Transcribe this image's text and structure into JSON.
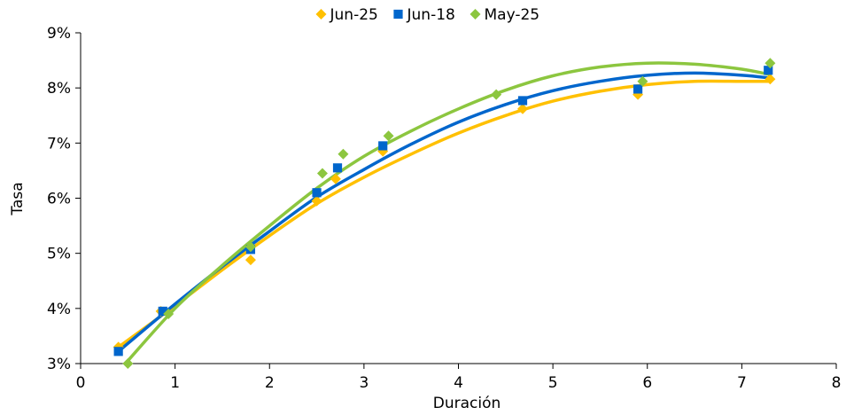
{
  "chart_data": {
    "type": "scatter",
    "xlabel": "Duración",
    "ylabel": "Tasa",
    "xlim": [
      0,
      8
    ],
    "ylim": [
      3,
      9
    ],
    "xticks": [
      0,
      1,
      2,
      3,
      4,
      5,
      6,
      7,
      8
    ],
    "yticks": [
      3,
      4,
      5,
      6,
      7,
      8,
      9
    ],
    "ytick_suffix": "%",
    "grid": false,
    "legend_position": "top-center",
    "series": [
      {
        "name": "Jun-25",
        "color": "#ffc000",
        "marker": "diamond",
        "points": [
          {
            "x": 0.4,
            "y": 3.3
          },
          {
            "x": 0.85,
            "y": 3.95
          },
          {
            "x": 1.8,
            "y": 4.88
          },
          {
            "x": 2.5,
            "y": 5.95
          },
          {
            "x": 2.7,
            "y": 6.35
          },
          {
            "x": 3.2,
            "y": 6.85
          },
          {
            "x": 4.68,
            "y": 7.62
          },
          {
            "x": 5.9,
            "y": 7.88
          },
          {
            "x": 7.3,
            "y": 8.16
          }
        ],
        "curve": [
          {
            "x": 0.4,
            "y": 3.3
          },
          {
            "x": 1.0,
            "y": 4.05
          },
          {
            "x": 1.5,
            "y": 4.7
          },
          {
            "x": 2.0,
            "y": 5.32
          },
          {
            "x": 2.5,
            "y": 5.9
          },
          {
            "x": 3.0,
            "y": 6.38
          },
          {
            "x": 3.5,
            "y": 6.8
          },
          {
            "x": 4.0,
            "y": 7.18
          },
          {
            "x": 4.5,
            "y": 7.5
          },
          {
            "x": 5.0,
            "y": 7.76
          },
          {
            "x": 5.5,
            "y": 7.94
          },
          {
            "x": 6.0,
            "y": 8.06
          },
          {
            "x": 6.5,
            "y": 8.12
          },
          {
            "x": 7.0,
            "y": 8.12
          },
          {
            "x": 7.3,
            "y": 8.12
          }
        ]
      },
      {
        "name": "Jun-18",
        "color": "#0066cc",
        "marker": "square",
        "points": [
          {
            "x": 0.4,
            "y": 3.22
          },
          {
            "x": 0.87,
            "y": 3.95
          },
          {
            "x": 1.8,
            "y": 5.07
          },
          {
            "x": 2.5,
            "y": 6.1
          },
          {
            "x": 2.72,
            "y": 6.55
          },
          {
            "x": 3.2,
            "y": 6.95
          },
          {
            "x": 4.68,
            "y": 7.77
          },
          {
            "x": 5.9,
            "y": 7.98
          },
          {
            "x": 7.28,
            "y": 8.32
          }
        ],
        "curve": [
          {
            "x": 0.4,
            "y": 3.22
          },
          {
            "x": 1.0,
            "y": 4.08
          },
          {
            "x": 1.5,
            "y": 4.76
          },
          {
            "x": 2.0,
            "y": 5.4
          },
          {
            "x": 2.5,
            "y": 6.02
          },
          {
            "x": 3.0,
            "y": 6.52
          },
          {
            "x": 3.5,
            "y": 6.98
          },
          {
            "x": 4.0,
            "y": 7.38
          },
          {
            "x": 4.5,
            "y": 7.7
          },
          {
            "x": 5.0,
            "y": 7.95
          },
          {
            "x": 5.5,
            "y": 8.12
          },
          {
            "x": 6.0,
            "y": 8.23
          },
          {
            "x": 6.5,
            "y": 8.27
          },
          {
            "x": 7.0,
            "y": 8.23
          },
          {
            "x": 7.3,
            "y": 8.18
          }
        ]
      },
      {
        "name": "May-25",
        "color": "#8cc63f",
        "marker": "diamond",
        "points": [
          {
            "x": 0.5,
            "y": 3.0
          },
          {
            "x": 0.93,
            "y": 3.9
          },
          {
            "x": 1.8,
            "y": 5.12
          },
          {
            "x": 2.56,
            "y": 6.45
          },
          {
            "x": 2.78,
            "y": 6.8
          },
          {
            "x": 3.26,
            "y": 7.13
          },
          {
            "x": 4.4,
            "y": 7.88
          },
          {
            "x": 5.95,
            "y": 8.12
          },
          {
            "x": 7.3,
            "y": 8.45
          }
        ],
        "curve": [
          {
            "x": 0.5,
            "y": 3.05
          },
          {
            "x": 1.0,
            "y": 4.0
          },
          {
            "x": 1.5,
            "y": 4.78
          },
          {
            "x": 2.0,
            "y": 5.5
          },
          {
            "x": 2.5,
            "y": 6.18
          },
          {
            "x": 3.0,
            "y": 6.76
          },
          {
            "x": 3.5,
            "y": 7.22
          },
          {
            "x": 4.0,
            "y": 7.62
          },
          {
            "x": 4.5,
            "y": 7.96
          },
          {
            "x": 5.0,
            "y": 8.22
          },
          {
            "x": 5.5,
            "y": 8.38
          },
          {
            "x": 6.0,
            "y": 8.45
          },
          {
            "x": 6.5,
            "y": 8.43
          },
          {
            "x": 7.0,
            "y": 8.34
          },
          {
            "x": 7.3,
            "y": 8.24
          }
        ]
      }
    ]
  }
}
